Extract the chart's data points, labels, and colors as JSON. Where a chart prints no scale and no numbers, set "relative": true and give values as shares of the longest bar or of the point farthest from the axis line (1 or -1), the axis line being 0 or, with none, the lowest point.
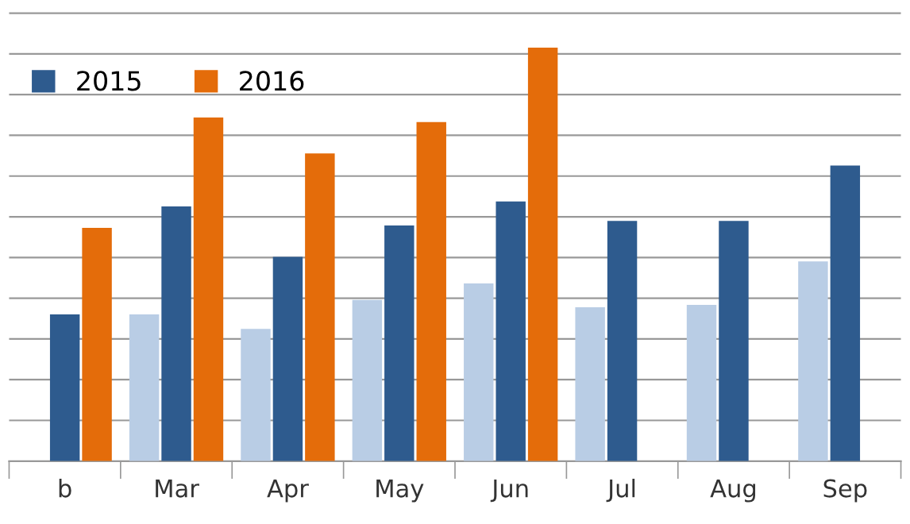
{
  "chart_data": {
    "type": "bar",
    "relative": true,
    "categories": [
      "b",
      "Mar",
      "Apr",
      "May",
      "Jun",
      "Jul",
      "Aug",
      "Sep"
    ],
    "series": [
      {
        "color": "#b9cde5",
        "values": [
          null,
          0.355,
          0.32,
          0.39,
          0.43,
          0.372,
          0.378,
          0.483
        ]
      },
      {
        "name": "2015",
        "color": "#2e5b8e",
        "values": [
          0.355,
          0.616,
          0.494,
          0.57,
          0.628,
          0.581,
          0.581,
          0.715
        ]
      },
      {
        "name": "2016",
        "color": "#e46c0a",
        "values": [
          0.564,
          0.831,
          0.744,
          0.82,
          1,
          null,
          null,
          null
        ]
      }
    ],
    "grid": "y",
    "legend": "top left"
  }
}
